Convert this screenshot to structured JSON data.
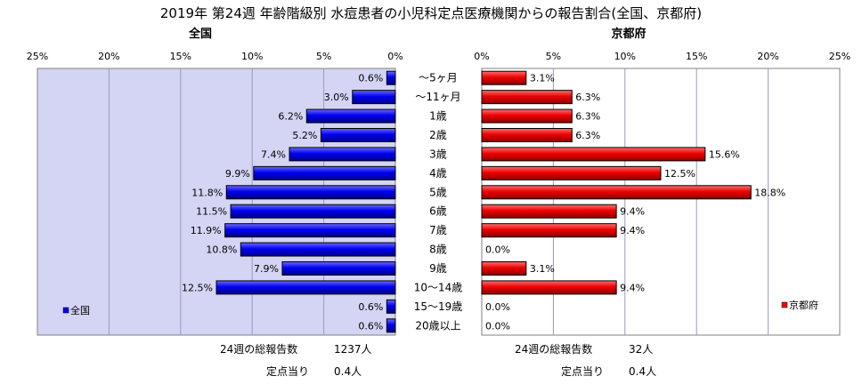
{
  "title": "2019年 第24週 年齢階級別 水痘患者の小児科定点医療機関からの報告割合(全国、京都府)",
  "chart_data": [
    {
      "type": "bar",
      "orientation": "horizontal",
      "direction": "right-to-left",
      "title": "全国",
      "categories": [
        "～5ヶ月",
        "～11ヶ月",
        "1歳",
        "2歳",
        "3歳",
        "4歳",
        "5歳",
        "6歳",
        "7歳",
        "8歳",
        "9歳",
        "10～14歳",
        "15～19歳",
        "20歳以上"
      ],
      "series": [
        {
          "name": "全国",
          "color": "#0000ff",
          "values": [
            0.6,
            3.0,
            6.2,
            5.2,
            7.4,
            9.9,
            11.8,
            11.5,
            11.9,
            10.8,
            7.9,
            12.5,
            0.6,
            0.6
          ],
          "labels": [
            "0.6%",
            "3.0%",
            "6.2%",
            "5.2%",
            "7.4%",
            "9.9%",
            "11.8%",
            "11.5%",
            "11.9%",
            "10.8%",
            "7.9%",
            "12.5%",
            "0.6%",
            "0.6%"
          ]
        }
      ],
      "xlim": [
        0,
        25
      ],
      "ticks": [
        "0%",
        "5%",
        "10%",
        "15%",
        "20%",
        "25%"
      ],
      "grid": true,
      "legend": "bottom-left",
      "plot_background": "#d4d4f4",
      "summary": {
        "total_label": "24週の総報告数",
        "total_value": "1237人",
        "per_label": "定点当り",
        "per_value": "0.4人"
      }
    },
    {
      "type": "bar",
      "orientation": "horizontal",
      "direction": "left-to-right",
      "title": "京都府",
      "categories": [
        "～5ヶ月",
        "～11ヶ月",
        "1歳",
        "2歳",
        "3歳",
        "4歳",
        "5歳",
        "6歳",
        "7歳",
        "8歳",
        "9歳",
        "10～14歳",
        "15～19歳",
        "20歳以上"
      ],
      "series": [
        {
          "name": "京都府",
          "color": "#ff0000",
          "values": [
            3.1,
            6.3,
            6.3,
            6.3,
            15.6,
            12.5,
            18.8,
            9.4,
            9.4,
            0.0,
            3.1,
            9.4,
            0.0,
            0.0
          ],
          "labels": [
            "3.1%",
            "6.3%",
            "6.3%",
            "6.3%",
            "15.6%",
            "12.5%",
            "18.8%",
            "9.4%",
            "9.4%",
            "0.0%",
            "3.1%",
            "9.4%",
            "0.0%",
            "0.0%"
          ]
        }
      ],
      "xlim": [
        0,
        25
      ],
      "ticks": [
        "0%",
        "5%",
        "10%",
        "15%",
        "20%",
        "25%"
      ],
      "grid": true,
      "legend": "bottom-right",
      "plot_background": "#ffffff",
      "summary": {
        "total_label": "24週の総報告数",
        "total_value": "32人",
        "per_label": "定点当り",
        "per_value": "0.4人"
      }
    }
  ]
}
